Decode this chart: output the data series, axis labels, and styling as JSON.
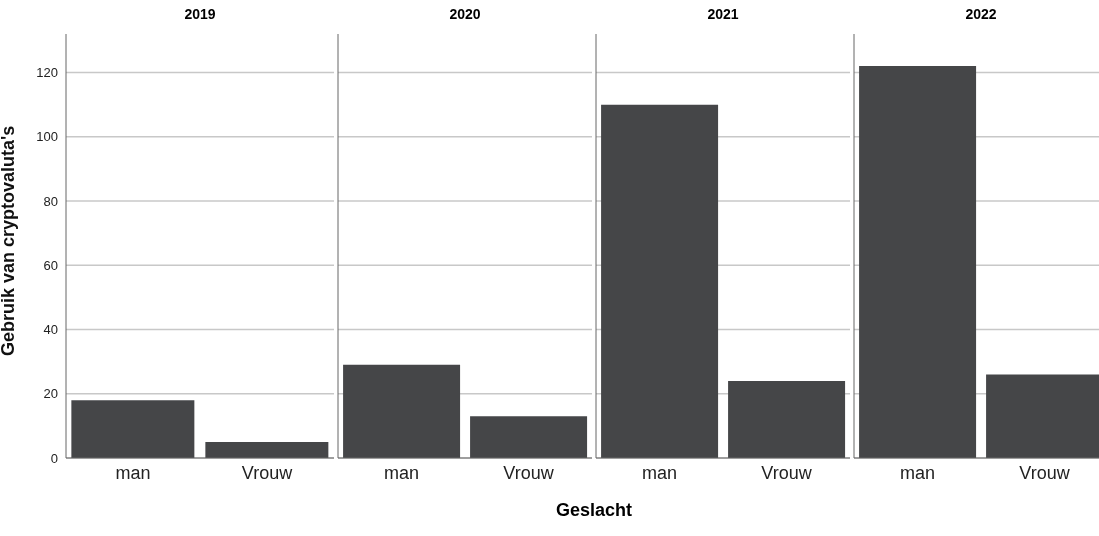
{
  "chart_data": [
    {
      "type": "bar",
      "title": "2019",
      "ylabel": "Gebruik van cryptovaluta's",
      "categories": [
        "man",
        "Vrouw"
      ],
      "values": [
        18,
        5
      ],
      "color": "#454648",
      "ylim": [
        0,
        132
      ],
      "yticks": [
        0,
        20,
        40,
        60,
        80,
        100,
        120
      ],
      "grid": "y"
    },
    {
      "type": "bar",
      "title": "2020",
      "xlabel": "Geslacht",
      "categories": [
        "man",
        "Vrouw"
      ],
      "values": [
        29,
        13
      ],
      "color": "#454648",
      "ylim": [
        0,
        132
      ],
      "yticks": [
        0,
        20,
        40,
        60,
        80,
        100,
        120
      ],
      "grid": "y",
      "tick_labels": "x"
    },
    {
      "type": "bar",
      "title": "2021",
      "categories": [
        "man",
        "Vrouw"
      ],
      "values": [
        110,
        24
      ],
      "color": "#454648",
      "ylim": [
        0,
        132
      ],
      "yticks": [
        0,
        20,
        40,
        60,
        80,
        100,
        120
      ],
      "grid": "y",
      "tick_labels": "x"
    },
    {
      "type": "bar",
      "title": "2022",
      "categories": [
        "man",
        "Vrouw"
      ],
      "values": [
        122,
        26
      ],
      "color": "#454648",
      "ylim": [
        0,
        132
      ],
      "yticks": [
        0,
        20,
        40,
        60,
        80,
        100,
        120
      ],
      "grid": "y",
      "tick_labels": "x"
    }
  ]
}
